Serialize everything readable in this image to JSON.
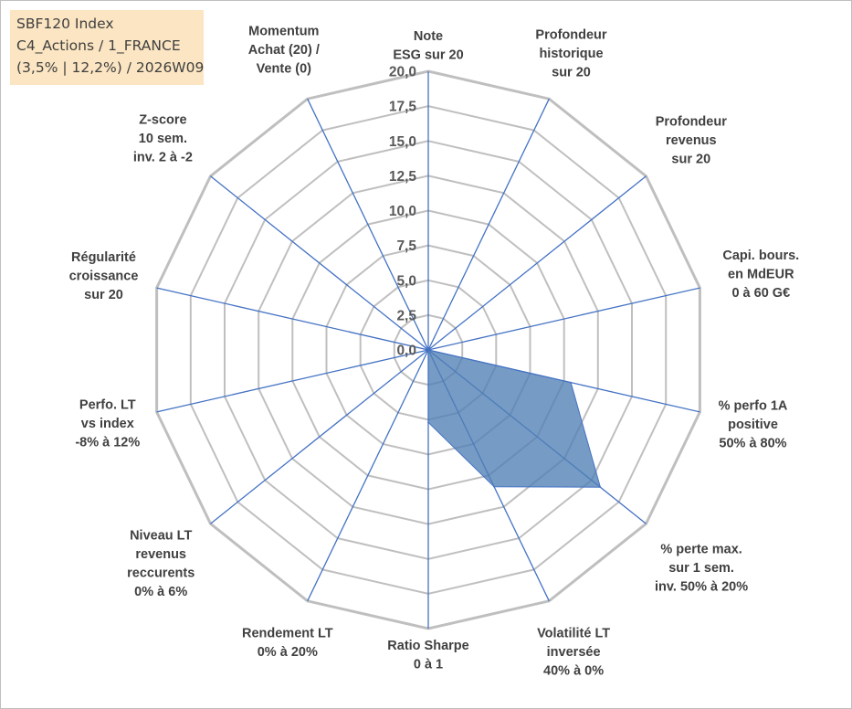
{
  "info_box": {
    "line1": "SBF120 Index",
    "line2": "C4_Actions / 1_FRANCE",
    "line3": "(3,5% | 12,2%) / 2026W09"
  },
  "colors": {
    "grid": "#bfbfbf",
    "spoke": "#4472c4",
    "fill": "#4f7fb5",
    "text": "#404040"
  },
  "chart_data": {
    "type": "radar",
    "title": "",
    "rmax": 20,
    "ticks": [
      "0,0",
      "2,5",
      "5,0",
      "7,5",
      "10,0",
      "12,5",
      "15,0",
      "17,5",
      "20,0"
    ],
    "tick_values": [
      0,
      2.5,
      5,
      7.5,
      10,
      12.5,
      15,
      17.5,
      20
    ],
    "axes": [
      {
        "label": [
          "Note",
          "ESG sur 20"
        ]
      },
      {
        "label": [
          "Profondeur",
          "historique",
          "sur 20"
        ]
      },
      {
        "label": [
          "Profondeur",
          "revenus",
          "sur 20"
        ]
      },
      {
        "label": [
          "Capi. bours.",
          "en MdEUR",
          "0 à 60 G€"
        ]
      },
      {
        "label": [
          "% perfo 1A",
          "positive",
          "50% à 80%"
        ]
      },
      {
        "label": [
          "% perte max.",
          "sur 1 sem.",
          "inv. 50% à 20%"
        ]
      },
      {
        "label": [
          "Volatilité LT",
          "inversée",
          "40% à 0%"
        ]
      },
      {
        "label": [
          "Ratio Sharpe",
          "0 à 1"
        ]
      },
      {
        "label": [
          "Rendement LT",
          "0% à 20%"
        ]
      },
      {
        "label": [
          "Niveau LT",
          "revenus",
          "reccurents",
          "0% à 6%"
        ]
      },
      {
        "label": [
          "Perfo. LT",
          "vs index",
          "-8% à 12%"
        ]
      },
      {
        "label": [
          "Régularité",
          "croissance",
          "sur 20"
        ]
      },
      {
        "label": [
          "Z-score",
          "10 sem.",
          "inv. 2 à -2"
        ]
      },
      {
        "label": [
          "Momentum",
          "Achat (20) /",
          "Vente (0)"
        ]
      }
    ],
    "series": [
      {
        "values": [
          0,
          0,
          0,
          0,
          10.5,
          15.8,
          10.9,
          5.2,
          0,
          0,
          0,
          5.8,
          0,
          0
        ]
      }
    ]
  }
}
